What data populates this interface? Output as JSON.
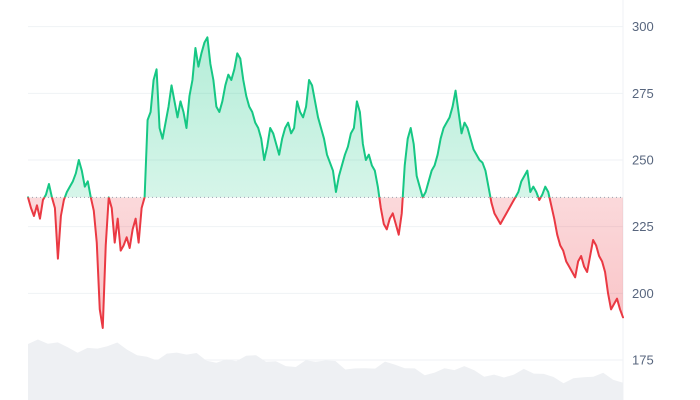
{
  "chart_data": {
    "type": "area",
    "baseline": 236,
    "ylim": [
      160,
      310
    ],
    "y_ticks": [
      300,
      275,
      250,
      225,
      200,
      175
    ],
    "grid": true,
    "colors": {
      "above": "#16c784",
      "below": "#ea3943",
      "tick_text": "#58667e",
      "volume": "#eef0f3"
    },
    "series": [
      {
        "values": [
          236,
          232,
          229,
          233,
          228,
          235,
          237,
          241,
          236,
          232,
          213,
          229,
          235,
          238,
          240,
          242,
          245,
          250,
          246,
          240,
          242,
          236,
          231,
          219,
          194,
          187,
          218,
          236,
          232,
          219,
          228,
          216,
          218,
          221,
          217,
          224,
          228,
          219,
          232,
          236,
          265,
          268,
          280,
          284,
          262,
          258,
          264,
          270,
          278,
          272,
          266,
          272,
          268,
          262,
          274,
          280,
          292,
          285,
          290,
          294,
          296,
          286,
          280,
          270,
          268,
          272,
          278,
          282,
          280,
          284,
          290,
          288,
          280,
          274,
          270,
          268,
          264,
          262,
          258,
          250,
          255,
          262,
          260,
          256,
          252,
          258,
          262,
          264,
          260,
          262,
          272,
          268,
          266,
          270,
          280,
          278,
          272,
          266,
          262,
          258,
          252,
          249,
          246,
          238,
          244,
          248,
          252,
          255,
          260,
          262,
          272,
          268,
          256,
          250,
          252,
          248,
          246,
          240,
          232,
          226,
          224,
          228,
          230,
          226,
          222,
          230,
          248,
          258,
          262,
          256,
          244,
          240,
          236,
          238,
          242,
          246,
          248,
          252,
          258,
          262,
          264,
          266,
          270,
          276,
          268,
          260,
          264,
          262,
          258,
          254,
          252,
          250,
          249,
          246,
          240,
          234,
          230,
          228,
          226,
          228,
          230,
          232,
          234,
          236,
          238,
          242,
          244,
          246,
          238,
          240,
          238,
          235,
          237,
          240,
          238,
          233,
          228,
          222,
          218,
          216,
          212,
          210,
          208,
          206,
          212,
          214,
          210,
          208,
          214,
          220,
          218,
          214,
          212,
          208,
          200,
          194,
          196,
          198,
          194,
          191
        ]
      }
    ]
  }
}
